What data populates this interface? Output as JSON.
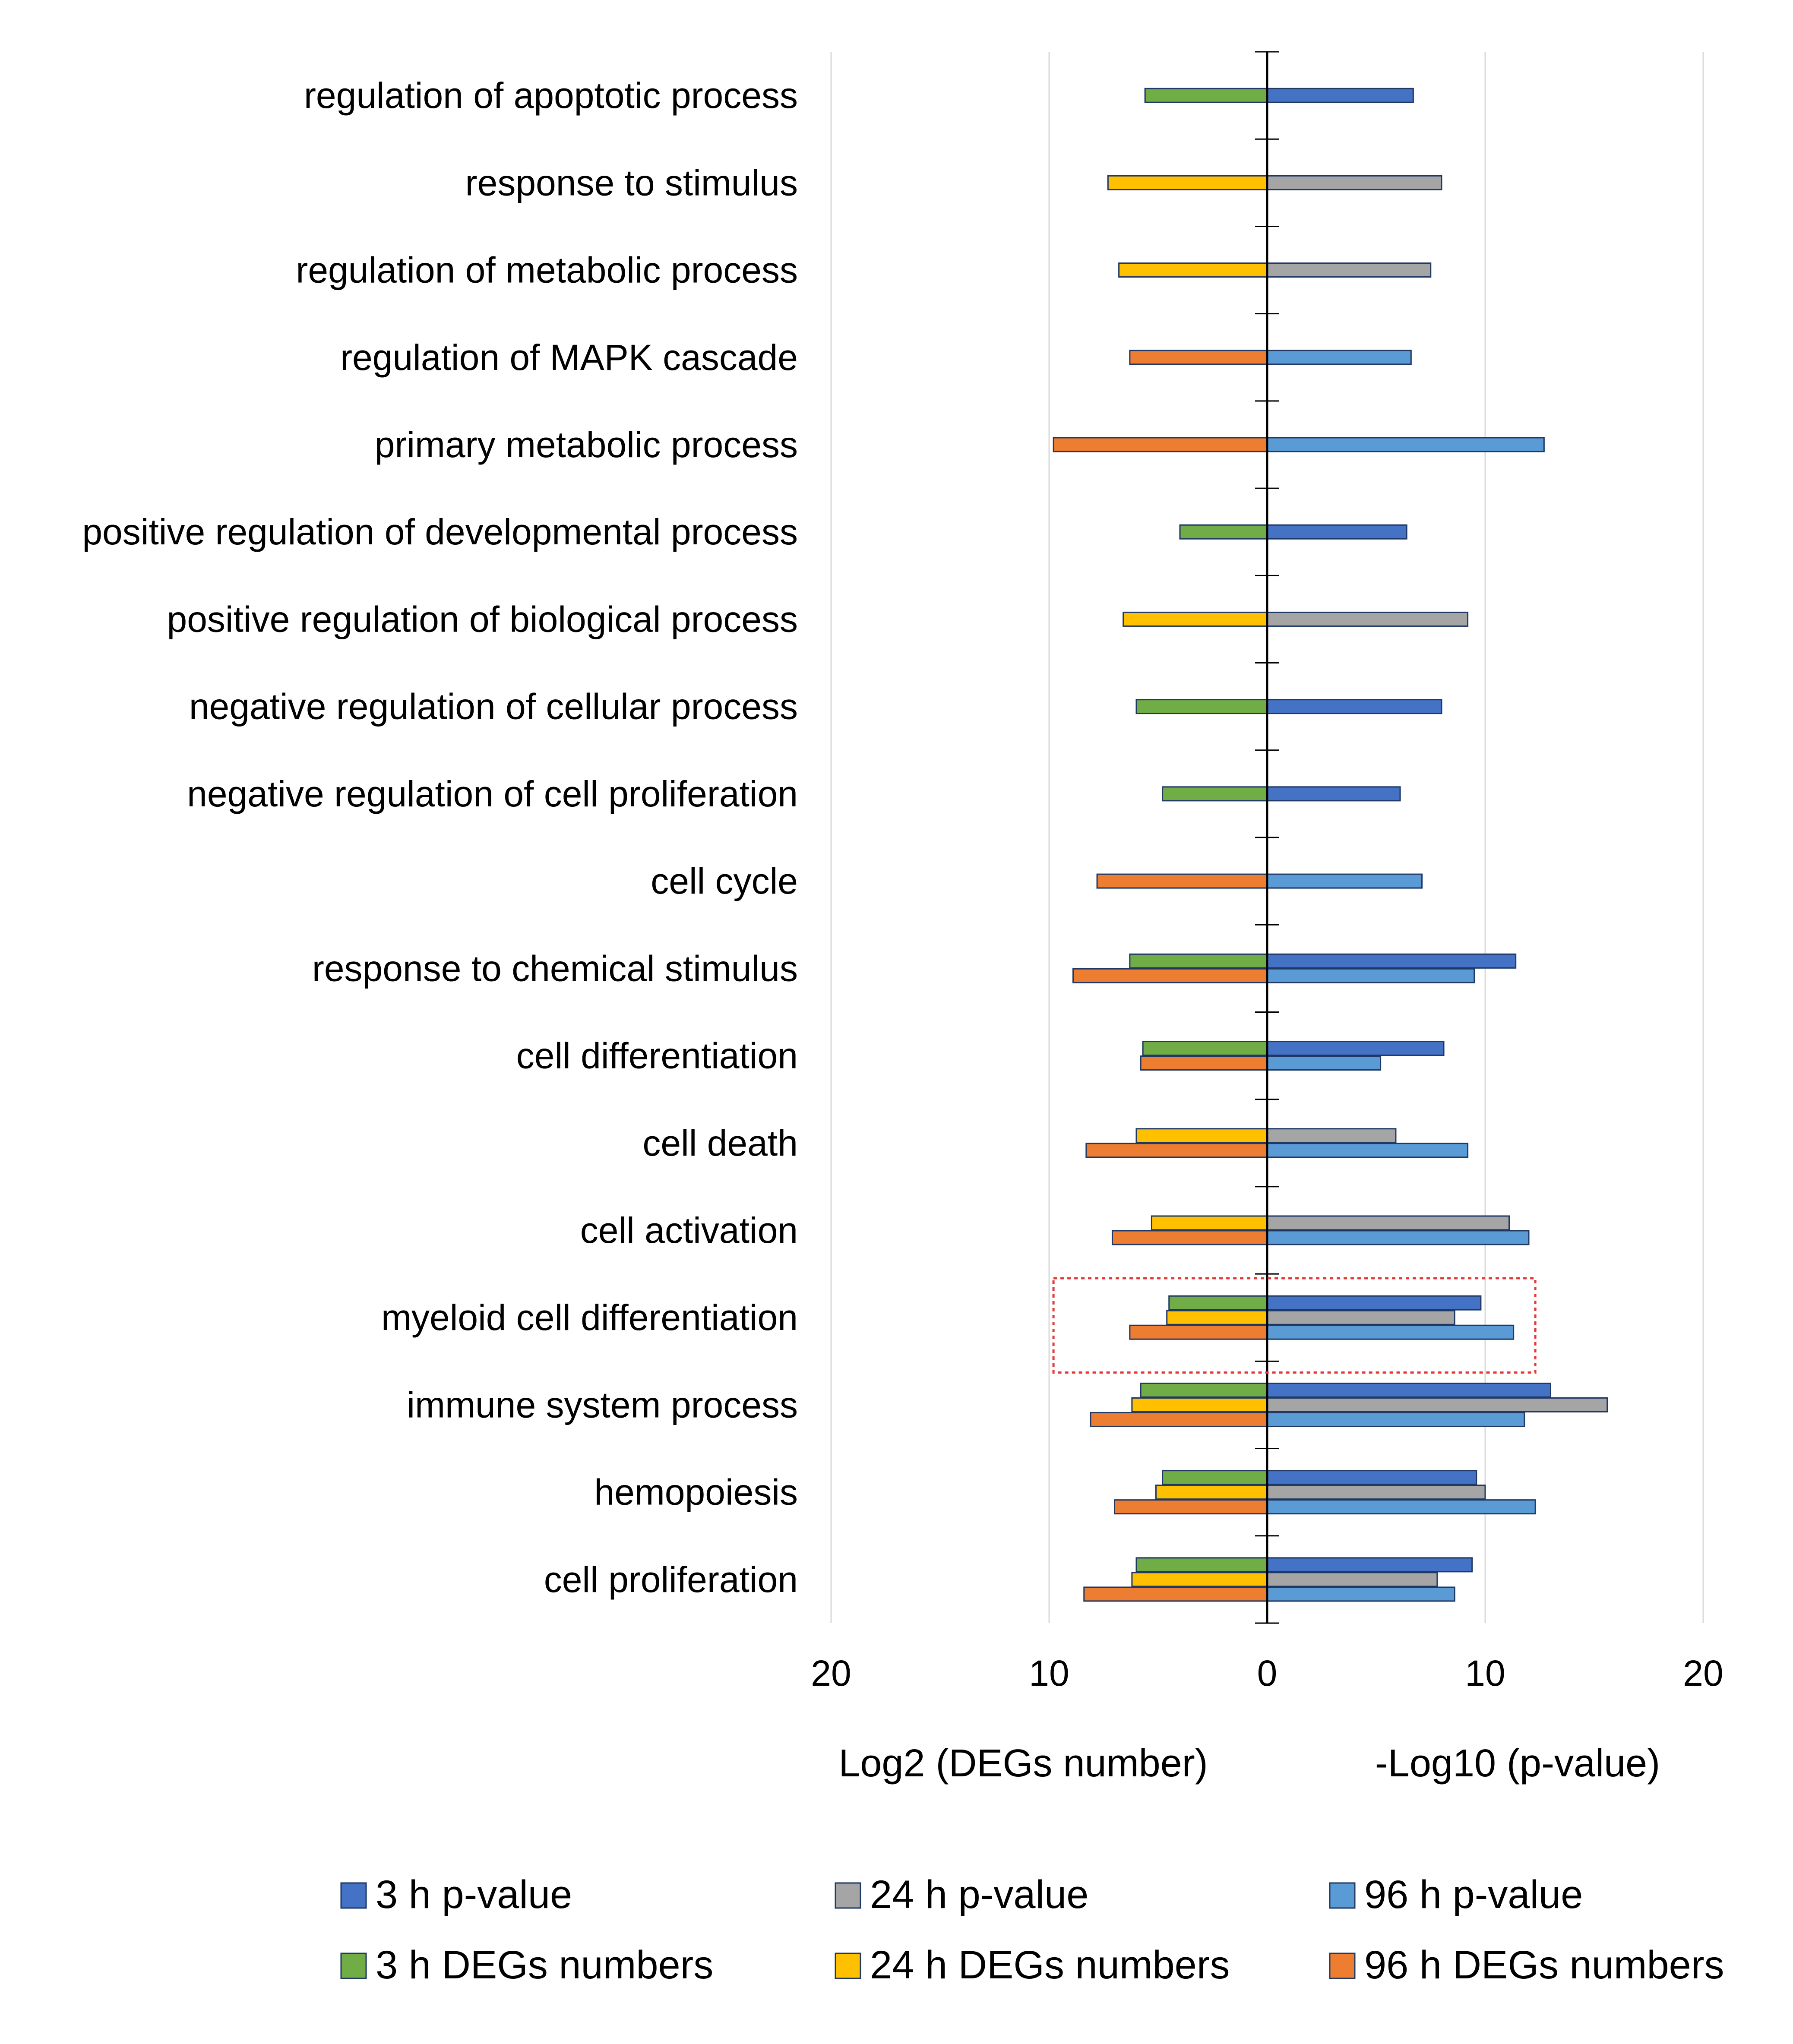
{
  "chart_data": {
    "type": "bar",
    "orientation": "horizontal-diverging",
    "categories": [
      "regulation of apoptotic process",
      "response to stimulus",
      "regulation of metabolic process",
      "regulation of MAPK cascade",
      "primary metabolic process",
      "positive regulation of developmental process",
      "positive regulation of biological process",
      "negative regulation of cellular process",
      "negative regulation of cell proliferation",
      "cell cycle",
      "response to chemical stimulus",
      "cell differentiation",
      "cell death",
      "cell activation",
      "myeloid cell differentiation",
      "immune system process",
      "hemopoiesis",
      "cell proliferation"
    ],
    "highlighted_category": "myeloid cell differentiation",
    "series": [
      {
        "name": "3 h p-value",
        "side": "right",
        "color": "#4472C4",
        "values": [
          6.7,
          null,
          null,
          null,
          null,
          6.4,
          null,
          8.0,
          6.1,
          null,
          11.4,
          8.1,
          null,
          null,
          9.8,
          13.0,
          9.6,
          9.4
        ]
      },
      {
        "name": "24 h p-value",
        "side": "right",
        "color": "#A5A5A5",
        "values": [
          null,
          8.0,
          7.5,
          null,
          null,
          null,
          9.2,
          null,
          null,
          null,
          null,
          null,
          5.9,
          11.1,
          8.6,
          15.6,
          10.0,
          7.8
        ]
      },
      {
        "name": "96 h p-value",
        "side": "right",
        "color": "#5B9BD5",
        "values": [
          null,
          null,
          null,
          6.6,
          12.7,
          null,
          null,
          null,
          null,
          7.1,
          9.5,
          5.2,
          9.2,
          12.0,
          11.3,
          11.8,
          12.3,
          8.6
        ]
      },
      {
        "name": "3 h DEGs numbers",
        "side": "left",
        "color": "#70AD47",
        "values": [
          5.6,
          null,
          null,
          null,
          null,
          4.0,
          null,
          6.0,
          4.8,
          null,
          6.3,
          5.7,
          null,
          null,
          4.5,
          5.8,
          4.8,
          6.0
        ]
      },
      {
        "name": "24 h DEGs numbers",
        "side": "left",
        "color": "#FFC000",
        "values": [
          null,
          7.3,
          6.8,
          null,
          null,
          null,
          6.6,
          null,
          null,
          null,
          null,
          null,
          6.0,
          5.3,
          4.6,
          6.2,
          5.1,
          6.2
        ]
      },
      {
        "name": "96 h DEGs numbers",
        "side": "left",
        "color": "#ED7D31",
        "values": [
          null,
          null,
          null,
          6.3,
          9.8,
          null,
          null,
          null,
          null,
          7.8,
          8.9,
          5.8,
          8.3,
          7.1,
          6.3,
          8.1,
          7.0,
          8.4
        ]
      }
    ],
    "xaxis": {
      "ticks": [
        -20,
        -10,
        0,
        10,
        20
      ],
      "tick_labels": [
        "20",
        "10",
        "0",
        "10",
        "20"
      ],
      "range": [
        -20,
        20
      ]
    },
    "left_axis_title": "Log2 (DEGs number)",
    "right_axis_title": "-Log10  (p-value)",
    "legend_position": "bottom",
    "legend_order": [
      "3 h p-value",
      "24 h p-value",
      "96 h p-value",
      "3 h DEGs numbers",
      "24 h DEGs numbers",
      "96 h DEGs numbers"
    ],
    "grid": "vertical"
  }
}
